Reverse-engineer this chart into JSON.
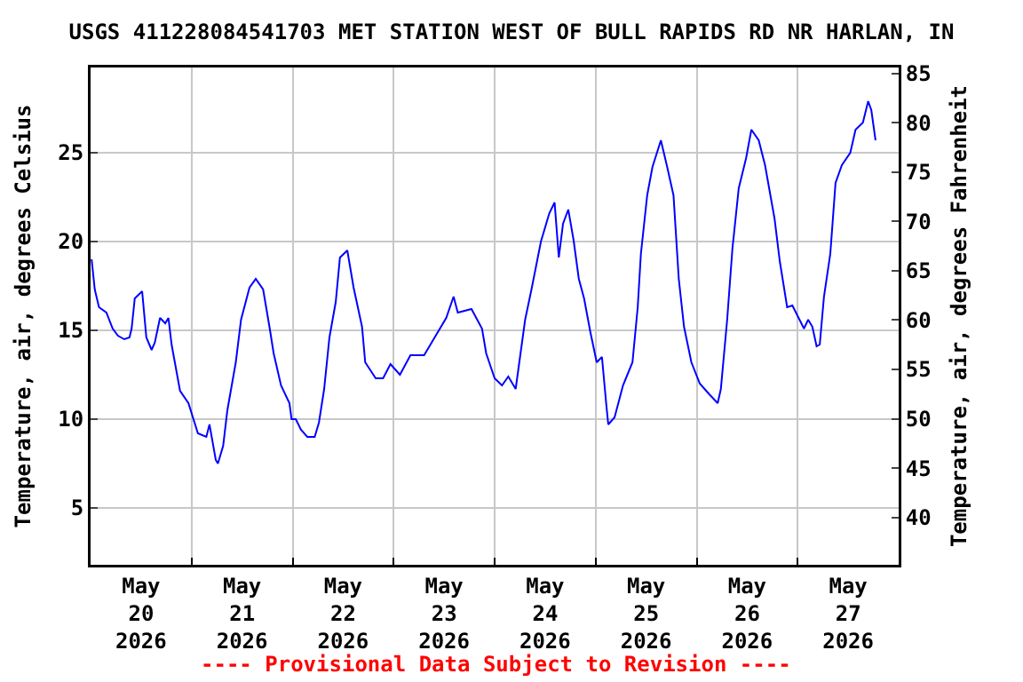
{
  "chart_data": {
    "type": "line",
    "title": "USGS 411228084541703 MET STATION WEST OF BULL RAPIDS RD NR HARLAN, IN",
    "ylabel": "Temperature, air, degrees Celsius",
    "y2label": "Temperature, air, degrees Fahrenheit",
    "annotations": [
      "---- Provisional Data Subject to Revision ----"
    ],
    "x": [
      "2026-05-20T00:15",
      "2026-05-20T01:00",
      "2026-05-20T02:00",
      "2026-05-20T03:45",
      "2026-05-20T05:15",
      "2026-05-20T06:30",
      "2026-05-20T08:00",
      "2026-05-20T09:15",
      "2026-05-20T09:45",
      "2026-05-20T10:30",
      "2026-05-20T12:15",
      "2026-05-20T13:15",
      "2026-05-20T14:30",
      "2026-05-20T15:15",
      "2026-05-20T16:30",
      "2026-05-20T17:45",
      "2026-05-20T18:30",
      "2026-05-20T19:15",
      "2026-05-20T20:15",
      "2026-05-20T21:15",
      "2026-05-20T23:15",
      "2026-05-21T01:30",
      "2026-05-21T03:30",
      "2026-05-21T04:15",
      "2026-05-21T05:45",
      "2026-05-21T06:15",
      "2026-05-21T07:30",
      "2026-05-21T08:30",
      "2026-05-21T10:30",
      "2026-05-21T11:45",
      "2026-05-21T13:45",
      "2026-05-21T15:15",
      "2026-05-21T17:00",
      "2026-05-21T18:30",
      "2026-05-21T19:30",
      "2026-05-21T21:15",
      "2026-05-21T23:15",
      "2026-05-21T23:45",
      "2026-05-22T00:45",
      "2026-05-22T02:00",
      "2026-05-22T03:30",
      "2026-05-22T05:15",
      "2026-05-22T06:15",
      "2026-05-22T07:30",
      "2026-05-22T08:45",
      "2026-05-22T10:15",
      "2026-05-22T11:15",
      "2026-05-22T13:00",
      "2026-05-22T14:30",
      "2026-05-22T16:30",
      "2026-05-22T17:15",
      "2026-05-22T19:45",
      "2026-05-22T21:30",
      "2026-05-22T23:15",
      "2026-05-23T01:30",
      "2026-05-23T04:00",
      "2026-05-23T07:15",
      "2026-05-23T09:45",
      "2026-05-23T12:30",
      "2026-05-23T14:15",
      "2026-05-23T15:15",
      "2026-05-23T18:30",
      "2026-05-23T21:00",
      "2026-05-23T22:00",
      "2026-05-24T00:00",
      "2026-05-24T01:45",
      "2026-05-24T03:15",
      "2026-05-24T05:00",
      "2026-05-24T07:15",
      "2026-05-24T08:45",
      "2026-05-24T11:00",
      "2026-05-24T13:00",
      "2026-05-24T14:15",
      "2026-05-24T15:15",
      "2026-05-24T16:15",
      "2026-05-24T17:30",
      "2026-05-24T18:45",
      "2026-05-24T20:00",
      "2026-05-24T21:15",
      "2026-05-24T22:45",
      "2026-05-25T00:15",
      "2026-05-25T01:30",
      "2026-05-25T02:30",
      "2026-05-25T03:00",
      "2026-05-25T04:30",
      "2026-05-25T06:30",
      "2026-05-25T08:45",
      "2026-05-25T10:00",
      "2026-05-25T10:45",
      "2026-05-25T12:15",
      "2026-05-25T13:30",
      "2026-05-25T15:30",
      "2026-05-25T17:00",
      "2026-05-25T18:30",
      "2026-05-25T19:45",
      "2026-05-25T21:00",
      "2026-05-25T22:45",
      "2026-05-26T00:45",
      "2026-05-26T03:00",
      "2026-05-26T05:00",
      "2026-05-26T05:45",
      "2026-05-26T07:15",
      "2026-05-26T08:30",
      "2026-05-26T10:00",
      "2026-05-26T11:45",
      "2026-05-26T13:00",
      "2026-05-26T14:45",
      "2026-05-26T16:15",
      "2026-05-26T18:30",
      "2026-05-26T19:45",
      "2026-05-26T21:30",
      "2026-05-26T22:45",
      "2026-05-27T01:30",
      "2026-05-27T02:30",
      "2026-05-27T03:30",
      "2026-05-27T04:30",
      "2026-05-27T05:15",
      "2026-05-27T06:15",
      "2026-05-27T07:45",
      "2026-05-27T09:00",
      "2026-05-27T10:30",
      "2026-05-27T12:30",
      "2026-05-27T13:45",
      "2026-05-27T15:30",
      "2026-05-27T16:45",
      "2026-05-27T17:30",
      "2026-05-27T18:30"
    ],
    "series": [
      {
        "color": "#0000ff",
        "values": [
          19.0,
          17.3,
          16.3,
          16.0,
          15.1,
          14.7,
          14.5,
          14.6,
          15.1,
          16.8,
          17.2,
          14.6,
          13.9,
          14.3,
          15.7,
          15.4,
          15.7,
          14.2,
          12.9,
          11.6,
          10.9,
          9.2,
          9.0,
          9.7,
          7.7,
          7.5,
          8.5,
          10.5,
          13.2,
          15.6,
          17.4,
          17.9,
          17.3,
          15.2,
          13.7,
          11.9,
          10.9,
          10.0,
          10.0,
          9.4,
          9.0,
          9.0,
          9.8,
          11.7,
          14.6,
          16.6,
          19.1,
          19.5,
          17.4,
          15.2,
          13.2,
          12.3,
          12.3,
          13.1,
          12.5,
          13.6,
          13.6,
          14.6,
          15.7,
          16.9,
          16.0,
          16.2,
          15.1,
          13.7,
          12.3,
          11.9,
          12.4,
          11.7,
          15.6,
          17.3,
          20.0,
          21.6,
          22.2,
          19.1,
          21.0,
          21.8,
          20.1,
          17.9,
          16.8,
          14.9,
          13.2,
          13.5,
          10.9,
          9.7,
          10.1,
          11.9,
          13.2,
          16.3,
          19.3,
          22.6,
          24.2,
          25.7,
          24.2,
          22.6,
          17.9,
          15.2,
          13.2,
          12.0,
          11.4,
          10.9,
          11.7,
          15.6,
          19.6,
          23.0,
          24.7,
          26.3,
          25.7,
          24.3,
          21.3,
          18.9,
          16.3,
          16.4,
          15.1,
          15.6,
          15.2,
          14.1,
          14.2,
          16.9,
          19.3,
          23.3,
          24.3,
          25.0,
          26.3,
          26.7,
          27.9,
          27.4,
          25.7
        ]
      }
    ],
    "xlim": [
      "2026-05-20",
      "2026-05-28"
    ],
    "xticks": [
      {
        "value": "2026-05-20T12:00",
        "label": "May\n20\n2026"
      },
      {
        "value": "2026-05-21",
        "label": null
      },
      {
        "value": "2026-05-21T12:00",
        "label": "May\n21\n2026"
      },
      {
        "value": "2026-05-22",
        "label": null
      },
      {
        "value": "2026-05-22T12:00",
        "label": "May\n22\n2026"
      },
      {
        "value": "2026-05-23",
        "label": null
      },
      {
        "value": "2026-05-23T12:00",
        "label": "May\n23\n2026"
      },
      {
        "value": "2026-05-24",
        "label": null
      },
      {
        "value": "2026-05-24T12:00",
        "label": "May\n24\n2026"
      },
      {
        "value": "2026-05-25",
        "label": null
      },
      {
        "value": "2026-05-25T12:00",
        "label": "May\n25\n2026"
      },
      {
        "value": "2026-05-26",
        "label": null
      },
      {
        "value": "2026-05-26T12:00",
        "label": "May\n26\n2026"
      },
      {
        "value": "2026-05-27",
        "label": null
      },
      {
        "value": "2026-05-27T12:00",
        "label": "May\n27\n2026"
      }
    ],
    "ylim": [
      1.8,
      29.8
    ],
    "yticks": [
      5,
      10,
      15,
      20,
      25
    ],
    "y2lim": [
      35.2,
      85.6
    ],
    "y2ticks": [
      40,
      45,
      50,
      55,
      60,
      65,
      70,
      75,
      80,
      85
    ],
    "grid": true
  }
}
